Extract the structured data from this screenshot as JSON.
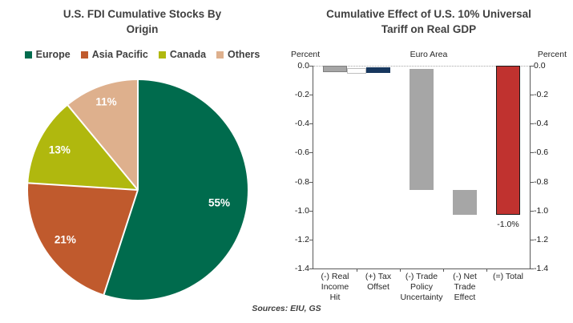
{
  "page": {
    "source_note": "Sources: EIU, GS"
  },
  "chart_data": [
    {
      "type": "pie",
      "title": "U.S. FDI Cumulative Stocks By Origin",
      "title_lines": [
        "U.S. FDI Cumulative Stocks By",
        "Origin"
      ],
      "labels": [
        "Europe",
        "Asia Pacific",
        "Canada",
        "Others"
      ],
      "values": [
        55,
        21,
        13,
        11
      ],
      "data_labels": [
        "55%",
        "21%",
        "13%",
        "11%"
      ],
      "colors": [
        "#006B4D",
        "#C05A2D",
        "#B0B80E",
        "#DEB08D"
      ],
      "legend_position": "top",
      "start_angle_deg": 0,
      "direction": "clockwise"
    },
    {
      "type": "bar",
      "subtype": "waterfall",
      "title": "Cumulative Effect of U.S. 10% Universal Tariff on Real GDP",
      "title_lines": [
        "Cumulative Effect of U.S. 10% Universal",
        "Tariff on Real GDP"
      ],
      "axis_label_left": "Percent",
      "axis_label_right": "Percent",
      "region_label": "Euro Area",
      "categories": [
        "(-) Real Income Hit",
        "(+) Tax Offset",
        "(-) Trade Policy Uncertainty",
        "(-) Net Trade Effect",
        "(=) Total"
      ],
      "category_lines": [
        "(-) Real\nIncome\nHit",
        "(+) Tax\nOffset",
        "(-) Trade\nPolicy\nUncertainty",
        "(-) Net\nTrade\nEffect",
        "(=) Total"
      ],
      "values": [
        -0.05,
        0.03,
        -0.84,
        -0.17,
        -1.03
      ],
      "bars": [
        {
          "cat": 0,
          "from": 0,
          "to": -0.045,
          "fill": "#A6A6A6",
          "border": "#7F7F7F",
          "label": ""
        },
        {
          "cat": 1,
          "from": -0.012,
          "to": -0.05,
          "fill": "#17375E",
          "border": "#17375E",
          "label": ""
        },
        {
          "cat": 2,
          "from": -0.02,
          "to": -0.86,
          "fill": "#A6A6A6",
          "border": "#A6A6A6",
          "label": ""
        },
        {
          "cat": 3,
          "from": -0.86,
          "to": -1.03,
          "fill": "#A6A6A6",
          "border": "#A6A6A6",
          "label": ""
        },
        {
          "cat": 4,
          "from": 0,
          "to": -1.03,
          "fill": "#C0322F",
          "border": "#1A1A1A",
          "label": "-1.0%"
        }
      ],
      "connector": {
        "from": -0.018,
        "to": -0.058,
        "fill": "#FFFFFF",
        "border": "#BFBFBF"
      },
      "ylim": [
        -1.4,
        0
      ],
      "yticks": [
        "0.0",
        "-0.2",
        "-0.4",
        "-0.6",
        "-0.8",
        "-1.0",
        "-1.2",
        "-1.4"
      ],
      "total_label": "-1.0%",
      "grid": "dotted-zero-line",
      "legend_position": "none"
    }
  ]
}
